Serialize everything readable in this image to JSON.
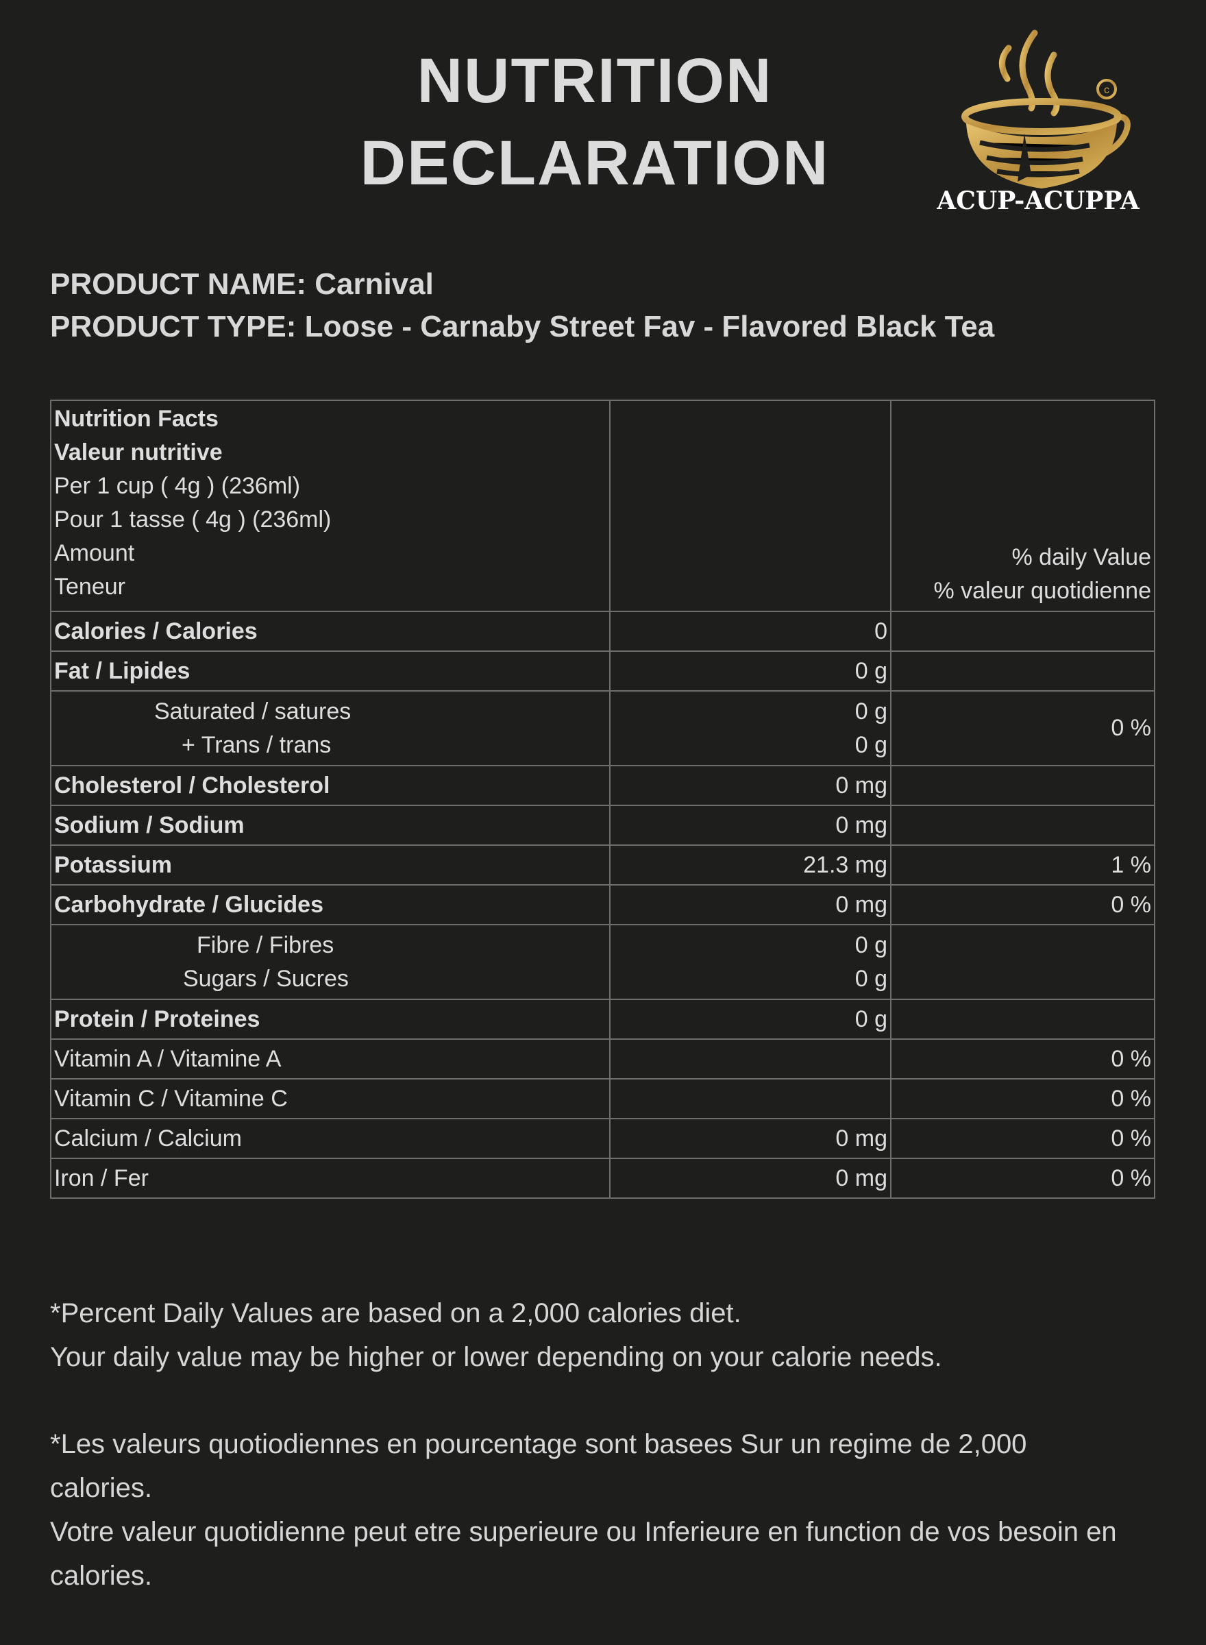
{
  "header": {
    "title_line1": "NUTRITION",
    "title_line2": "DECLARATION",
    "logo_text": "ACUP-ACUPPA"
  },
  "product": {
    "name": "PRODUCT NAME: Carnival",
    "type": "PRODUCT TYPE: Loose - Carnaby Street Fav - Flavored Black Tea"
  },
  "table": {
    "head": {
      "l1": "Nutrition Facts",
      "l2": "Valeur nutritive",
      "l3": "Per 1 cup ( 4g ) (236ml)",
      "l4": "Pour 1 tasse ( 4g ) (236ml)",
      "l5": "Amount",
      "l6": "Teneur",
      "dv1": "% daily Value",
      "dv2": "% valeur quotidienne"
    },
    "rows": [
      {
        "label": "Calories / Calories",
        "amount": "0",
        "dv": ""
      },
      {
        "label": "Fat / Lipides",
        "amount": "0 g",
        "dv": ""
      },
      {
        "label": "Saturated / satures",
        "label2": "+ Trans / trans",
        "amount": "0 g",
        "amount2": "0 g",
        "dv": "0 %"
      },
      {
        "label": "Cholesterol / Cholesterol",
        "amount": "0 mg",
        "dv": ""
      },
      {
        "label": "Sodium / Sodium",
        "amount": "0 mg",
        "dv": ""
      },
      {
        "label": "Potassium",
        "amount": "21.3 mg",
        "dv": "1 %"
      },
      {
        "label": "Carbohydrate / Glucides",
        "amount": "0 mg",
        "dv": "0 %"
      },
      {
        "label": "Fibre / Fibres",
        "label2": "Sugars / Sucres",
        "amount": "0 g",
        "amount2": "0 g",
        "dv": ""
      },
      {
        "label": "Protein / Proteines",
        "amount": "0 g",
        "dv": ""
      },
      {
        "label": "Vitamin A / Vitamine A",
        "amount": "",
        "dv": "0 %"
      },
      {
        "label": "Vitamin C / Vitamine C",
        "amount": "",
        "dv": "0 %"
      },
      {
        "label": "Calcium / Calcium",
        "amount": "0 mg",
        "dv": "0 %"
      },
      {
        "label": "Iron / Fer",
        "amount": "0 mg",
        "dv": "0 %"
      }
    ]
  },
  "footer": {
    "en1": "*Percent Daily Values are based on a 2,000 calories diet.",
    "en2": "Your daily value may be higher or lower depending on your calorie needs.",
    "fr1": "*Les valeurs quotiodiennes en pourcentage sont basees Sur un regime de 2,000 calories.",
    "fr2": "Votre valeur quotidienne peut etre superieure ou Inferieure en function de vos besoin en calories."
  },
  "colors": {
    "background": "#1e1e1d",
    "text": "#dedede",
    "gold": "#c9a24a",
    "border": "#6e6e6e"
  }
}
